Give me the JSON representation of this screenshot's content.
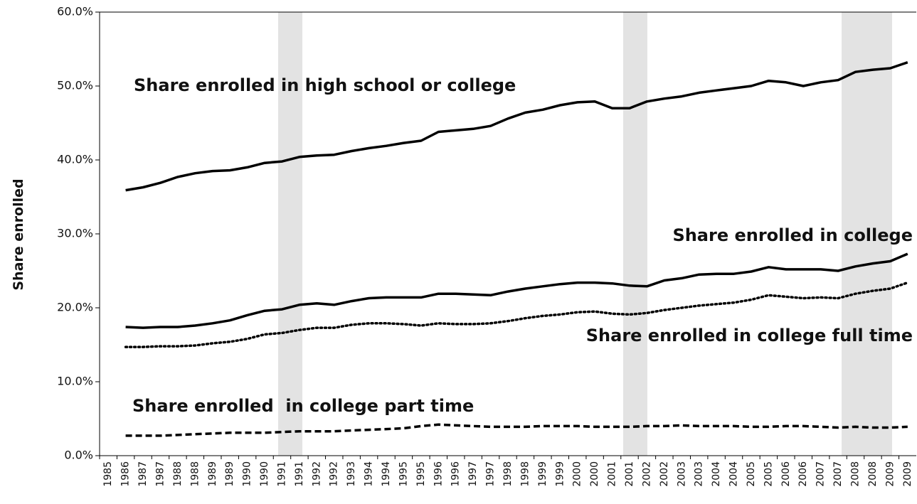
{
  "chart_data": {
    "type": "line",
    "y_label": "Share enrolled",
    "categories": [
      "1985",
      "1986",
      "1987",
      "1987",
      "1988",
      "1988",
      "1989",
      "1989",
      "1990",
      "1990",
      "1991",
      "1991",
      "1992",
      "1992",
      "1993",
      "1994",
      "1994",
      "1995",
      "1995",
      "1996",
      "1996",
      "1997",
      "1997",
      "1998",
      "1998",
      "1999",
      "1999",
      "2000",
      "2000",
      "2001",
      "2001",
      "2002",
      "2002",
      "2003",
      "2003",
      "2004",
      "2004",
      "2005",
      "2005",
      "2006",
      "2006",
      "2007",
      "2007",
      "2008",
      "2008",
      "2009",
      "2009"
    ],
    "ylim": [
      0,
      60
    ],
    "yticks": [
      {
        "value": 0,
        "label": "0.0%"
      },
      {
        "value": 10,
        "label": "10.0%"
      },
      {
        "value": 20,
        "label": "20.0%"
      },
      {
        "value": 30,
        "label": "30.0%"
      },
      {
        "value": 40,
        "label": "40.0%"
      },
      {
        "value": 50,
        "label": "50.0%"
      },
      {
        "value": 60,
        "label": "60.0%"
      }
    ],
    "grid": false,
    "series": [
      {
        "name": "Share enrolled in high school or college",
        "color": "#000000",
        "style": "solid",
        "values": [
          null,
          35.9,
          36.3,
          36.9,
          37.7,
          38.2,
          38.5,
          38.6,
          39.0,
          39.6,
          39.8,
          40.4,
          40.6,
          40.7,
          41.2,
          41.6,
          41.9,
          42.3,
          42.6,
          43.8,
          44.0,
          44.2,
          44.6,
          45.6,
          46.4,
          46.8,
          47.4,
          47.8,
          47.9,
          47.0,
          47.0,
          47.9,
          48.3,
          48.6,
          49.1,
          49.4,
          49.7,
          50.0,
          50.7,
          50.5,
          50.0,
          50.5,
          50.8,
          51.9,
          52.2,
          52.4,
          53.2
        ]
      },
      {
        "name": "Share enrolled in college",
        "color": "#000000",
        "style": "solid",
        "values": [
          null,
          17.4,
          17.3,
          17.4,
          17.4,
          17.6,
          17.9,
          18.3,
          19.0,
          19.6,
          19.8,
          20.4,
          20.6,
          20.4,
          20.9,
          21.3,
          21.4,
          21.4,
          21.4,
          21.9,
          21.9,
          21.8,
          21.7,
          22.2,
          22.6,
          22.9,
          23.2,
          23.4,
          23.4,
          23.3,
          23.0,
          22.9,
          23.7,
          24.0,
          24.5,
          24.6,
          24.6,
          24.9,
          25.5,
          25.2,
          25.2,
          25.2,
          25.0,
          25.6,
          26.0,
          26.3,
          27.3
        ]
      },
      {
        "name": "Share enrolled in college full time",
        "color": "#000000",
        "style": "dotted",
        "values": [
          null,
          14.7,
          14.7,
          14.8,
          14.8,
          14.9,
          15.2,
          15.4,
          15.8,
          16.4,
          16.6,
          17.0,
          17.3,
          17.3,
          17.7,
          17.9,
          17.9,
          17.8,
          17.6,
          17.9,
          17.8,
          17.8,
          17.9,
          18.2,
          18.6,
          18.9,
          19.1,
          19.4,
          19.5,
          19.2,
          19.1,
          19.3,
          19.7,
          20.0,
          20.3,
          20.5,
          20.7,
          21.1,
          21.7,
          21.5,
          21.3,
          21.4,
          21.3,
          21.9,
          22.3,
          22.6,
          23.4
        ]
      },
      {
        "name": "Share enrolled  in college part time",
        "color": "#000000",
        "style": "dashed",
        "values": [
          null,
          2.7,
          2.7,
          2.7,
          2.8,
          2.9,
          3.0,
          3.1,
          3.1,
          3.1,
          3.2,
          3.3,
          3.3,
          3.3,
          3.4,
          3.5,
          3.6,
          3.7,
          4.0,
          4.2,
          4.1,
          4.0,
          3.9,
          3.9,
          3.9,
          4.0,
          4.0,
          4.0,
          3.9,
          3.9,
          3.9,
          4.0,
          4.0,
          4.1,
          4.0,
          4.0,
          4.0,
          3.9,
          3.9,
          4.0,
          4.0,
          3.9,
          3.8,
          3.9,
          3.8,
          3.8,
          3.9
        ]
      }
    ]
  }
}
